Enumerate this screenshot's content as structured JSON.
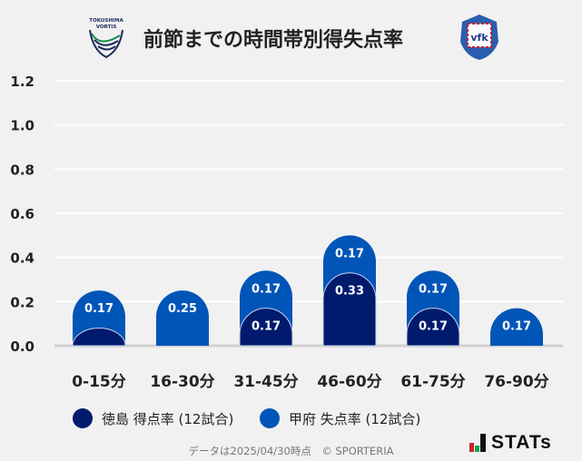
{
  "header": {
    "title": "前節までの時間帯別得失点率",
    "home_logo_text": "TOKUSHIMA VORTIS",
    "away_logo_text": "VENTFORET KOFU"
  },
  "chart_data": {
    "type": "bar",
    "stacked": true,
    "title": "前節までの時間帯別得失点率",
    "categories": [
      "0-15分",
      "16-30分",
      "31-45分",
      "46-60分",
      "61-75分",
      "76-90分"
    ],
    "series": [
      {
        "name": "徳島 得点率 (12試合)",
        "color": "#001a6e",
        "values": [
          0.08,
          0,
          0.17,
          0.33,
          0.17,
          0
        ],
        "labels": [
          "",
          "",
          "0.17",
          "0.33",
          "0.17",
          ""
        ]
      },
      {
        "name": "甲府 失点率 (12試合)",
        "color": "#0055b8",
        "values": [
          0.17,
          0.25,
          0.17,
          0.17,
          0.17,
          0.17
        ],
        "labels": [
          "0.17",
          "0.25",
          "0.17",
          "0.17",
          "0.17",
          "0.17"
        ]
      }
    ],
    "ylim": [
      0,
      1.2
    ],
    "yticks": [
      "0.0",
      "0.2",
      "0.4",
      "0.6",
      "0.8",
      "1.0",
      "1.2"
    ],
    "grid": true,
    "legend_position": "bottom-left"
  },
  "legend": {
    "home": "徳島 得点率 (12試合)",
    "away": "甲府 失点率 (12試合)",
    "home_color": "#001a6e",
    "away_color": "#0055b8"
  },
  "footer": {
    "text": "データは2025/04/30時点　© SPORTERIA",
    "brand": "STATs"
  }
}
